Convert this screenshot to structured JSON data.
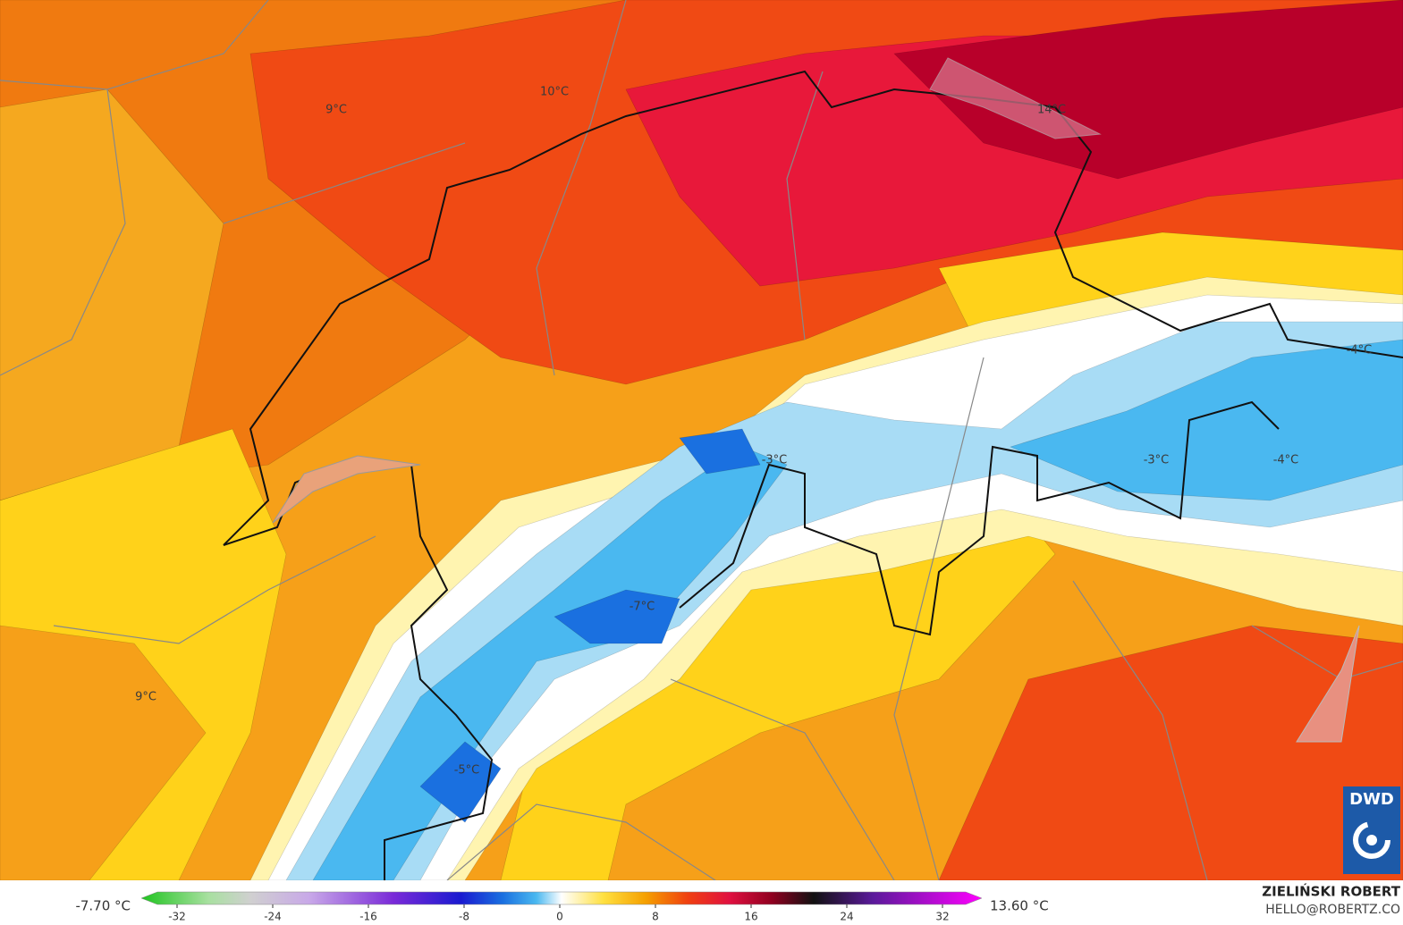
{
  "map": {
    "labels": [
      "9°C",
      "10°C",
      "14°C",
      "-4°C",
      "-3°C",
      "-3°C",
      "-4°C",
      "-7°C",
      "9°C",
      "-5°C"
    ]
  },
  "colorbar": {
    "min_label": "-7.70 °C",
    "max_label": "13.60 °C",
    "ticks": [
      -32,
      -24,
      -16,
      -8,
      0,
      8,
      16,
      24,
      32
    ]
  },
  "credit": {
    "author": "ZIELIŃSKI ROBERT",
    "contact": "HELLO@ROBERTZ.CO"
  },
  "logo": "DWD"
}
